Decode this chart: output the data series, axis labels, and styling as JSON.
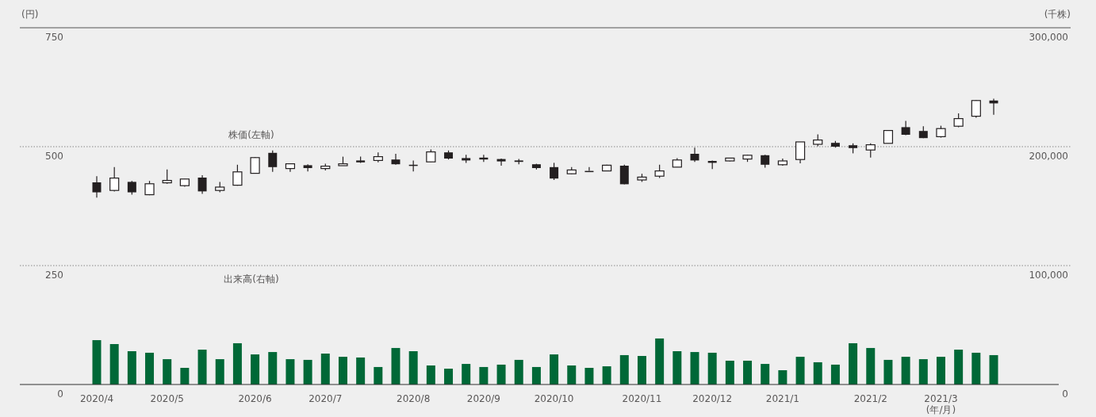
{
  "chart_data": {
    "type": "candlestick",
    "ylabel": "(円)",
    "y2label": "(千株)",
    "xlabel": "(年/月)",
    "categories": [
      "2020/4",
      null,
      null,
      null,
      "2020/5",
      null,
      null,
      null,
      null,
      "2020/6",
      null,
      null,
      null,
      "2020/7",
      null,
      null,
      null,
      null,
      "2020/8",
      null,
      null,
      null,
      "2020/9",
      null,
      null,
      null,
      "2020/10",
      null,
      null,
      null,
      null,
      "2020/11",
      null,
      null,
      null,
      "2020/12",
      null,
      null,
      null,
      "2021/1",
      null,
      null,
      null,
      null,
      "2021/2",
      null,
      null,
      null,
      "2021/3",
      null,
      null,
      null
    ],
    "ohlc": [
      [
        425,
        438,
        393,
        404
      ],
      [
        408,
        457,
        406,
        434
      ],
      [
        426,
        428,
        399,
        404
      ],
      [
        399,
        428,
        398,
        422
      ],
      [
        424,
        452,
        422,
        429
      ],
      [
        418,
        432,
        416,
        432
      ],
      [
        435,
        440,
        401,
        406
      ],
      [
        408,
        426,
        404,
        415
      ],
      [
        419,
        462,
        418,
        447
      ],
      [
        444,
        478,
        444,
        477
      ],
      [
        487,
        492,
        447,
        457
      ],
      [
        454,
        465,
        447,
        464
      ],
      [
        461,
        463,
        448,
        455
      ],
      [
        454,
        464,
        450,
        459
      ],
      [
        460,
        479,
        460,
        464
      ],
      [
        471,
        479,
        466,
        467
      ],
      [
        471,
        488,
        467,
        479
      ],
      [
        473,
        485,
        462,
        463
      ],
      [
        462,
        471,
        448,
        462
      ],
      [
        468,
        494,
        468,
        489
      ],
      [
        488,
        492,
        473,
        475
      ],
      [
        476,
        483,
        466,
        471
      ],
      [
        477,
        483,
        468,
        473
      ],
      [
        474,
        475,
        460,
        469
      ],
      [
        471,
        474,
        463,
        468
      ],
      [
        463,
        464,
        452,
        455
      ],
      [
        457,
        466,
        430,
        433
      ],
      [
        443,
        457,
        442,
        451
      ],
      [
        449,
        457,
        449,
        449
      ],
      [
        449,
        462,
        449,
        461
      ],
      [
        460,
        462,
        421,
        421
      ],
      [
        430,
        443,
        426,
        436
      ],
      [
        438,
        462,
        434,
        449
      ],
      [
        457,
        476,
        457,
        472
      ],
      [
        485,
        498,
        468,
        471
      ],
      [
        470,
        471,
        453,
        466
      ],
      [
        470,
        476,
        469,
        476
      ],
      [
        474,
        483,
        468,
        482
      ],
      [
        482,
        483,
        456,
        462
      ],
      [
        462,
        475,
        460,
        470
      ],
      [
        473,
        510,
        465,
        510
      ],
      [
        505,
        526,
        501,
        514
      ],
      [
        508,
        512,
        498,
        500
      ],
      [
        503,
        507,
        486,
        497
      ],
      [
        493,
        507,
        477,
        504
      ],
      [
        507,
        535,
        507,
        534
      ],
      [
        541,
        554,
        524,
        525
      ],
      [
        533,
        543,
        518,
        518
      ],
      [
        521,
        544,
        519,
        538
      ],
      [
        543,
        570,
        541,
        559
      ],
      [
        564,
        598,
        561,
        597
      ],
      [
        597,
        601,
        567,
        591
      ]
    ],
    "series": [
      {
        "type": "bar",
        "axis": "y2",
        "color": "#006837",
        "values": [
          37300,
          34000,
          28000,
          26700,
          21300,
          14000,
          29300,
          21300,
          34700,
          25300,
          27300,
          21300,
          20700,
          26000,
          23300,
          22700,
          14700,
          30700,
          28000,
          16000,
          13300,
          17300,
          14700,
          16700,
          20700,
          14700,
          25300,
          16000,
          14000,
          15300,
          24700,
          24000,
          38700,
          28000,
          27300,
          26700,
          20000,
          20000,
          17300,
          12000,
          23300,
          18700,
          16700,
          34700,
          30700,
          20700,
          23300,
          21300,
          23300,
          29300,
          26700,
          24700
        ]
      }
    ],
    "ylim": [
      0,
      750
    ],
    "yticks": [
      0,
      250,
      500,
      750
    ],
    "y2lim": [
      0,
      300000
    ],
    "y2ticks": [
      {
        "value": 0,
        "label": "0"
      },
      {
        "value": 100000,
        "label": "100,000"
      },
      {
        "value": 200000,
        "label": "200,000"
      },
      {
        "value": 300000,
        "label": "300,000"
      }
    ],
    "annotations": [
      "株価(左軸)",
      "出来高(右軸)"
    ],
    "grid": "y"
  }
}
